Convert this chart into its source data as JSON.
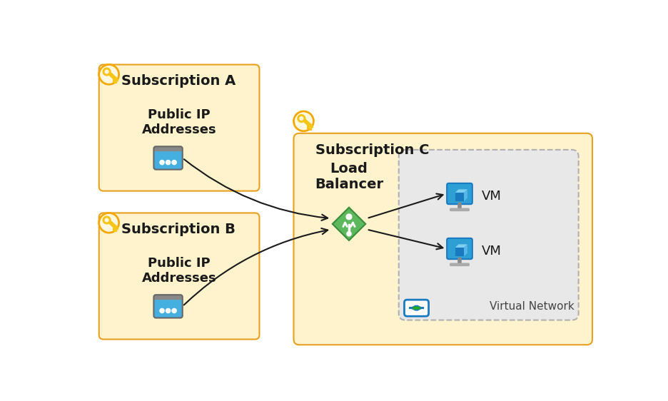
{
  "bg_color": "#ffffff",
  "sub_box_color": "#fef3cd",
  "sub_box_edge": "#e8a020",
  "vnet_box_color": "#e8e8e8",
  "vnet_box_edge": "#aaaaaa",
  "sub_a_label": "Subscription A",
  "sub_b_label": "Subscription B",
  "sub_c_label": "Subscription C",
  "pip_label": "Public IP\nAddresses",
  "lb_label": "Load\nBalancer",
  "vm_label": "VM",
  "vnet_label": "Virtual Network",
  "arrow_color": "#1a1a1a",
  "key_fill": "#f5c518",
  "key_ring_color": "#f5a800",
  "icon_blue_dark": "#1a7abf",
  "icon_blue_light": "#45b0e0",
  "icon_blue_mid": "#2e9fd4",
  "lb_green_dark": "#3a8c3a",
  "lb_green_mid": "#5db85d",
  "lb_green_light": "#7fd47f",
  "vnet_icon_blue": "#1a7abf",
  "vnet_icon_light": "#45b0e0"
}
